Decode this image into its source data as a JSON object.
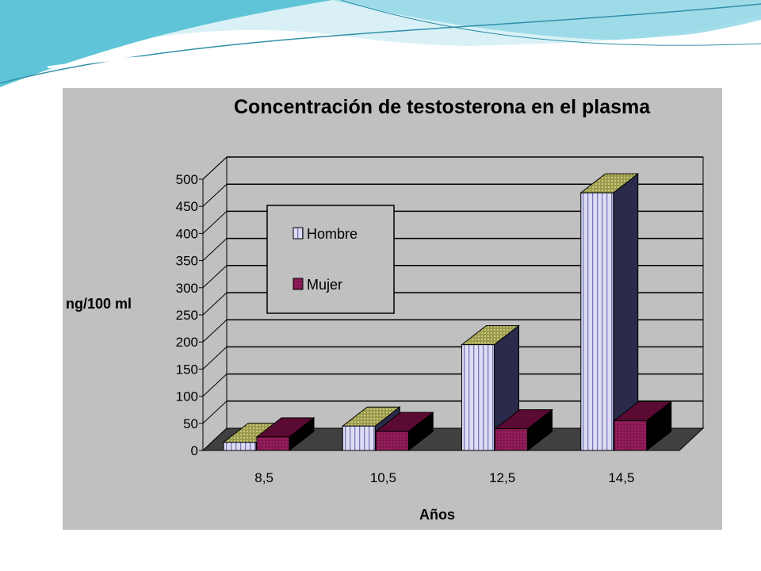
{
  "colors": {
    "panel_background": "#c0c0c0",
    "hombre_front": "#dcdcf4",
    "hombre_stripe": "#7a7ab8",
    "hombre_side": "#2a2a4a",
    "hombre_top": "#9a9a4c",
    "mujer_front": "#8a1a55",
    "mujer_side": "#000000",
    "mujer_top": "#5a0a33",
    "decor_teal": "#5fc4d8",
    "decor_light": "#bfe9f1"
  },
  "chart_data": {
    "type": "bar",
    "title": "Concentración de testosterona en el plasma",
    "xlabel": "Años",
    "ylabel": "ng/100 ml",
    "categories": [
      "8,5",
      "10,5",
      "12,5",
      "14,5"
    ],
    "ylim": [
      0,
      500
    ],
    "yticks": [
      "0",
      "50",
      "100",
      "150",
      "200",
      "250",
      "300",
      "350",
      "400",
      "450",
      "500"
    ],
    "grid": true,
    "legend_position": "top-left",
    "series": [
      {
        "name": "Hombre",
        "values": [
          15,
          45,
          195,
          475
        ]
      },
      {
        "name": "Mujer",
        "values": [
          25,
          35,
          40,
          55
        ]
      }
    ]
  }
}
